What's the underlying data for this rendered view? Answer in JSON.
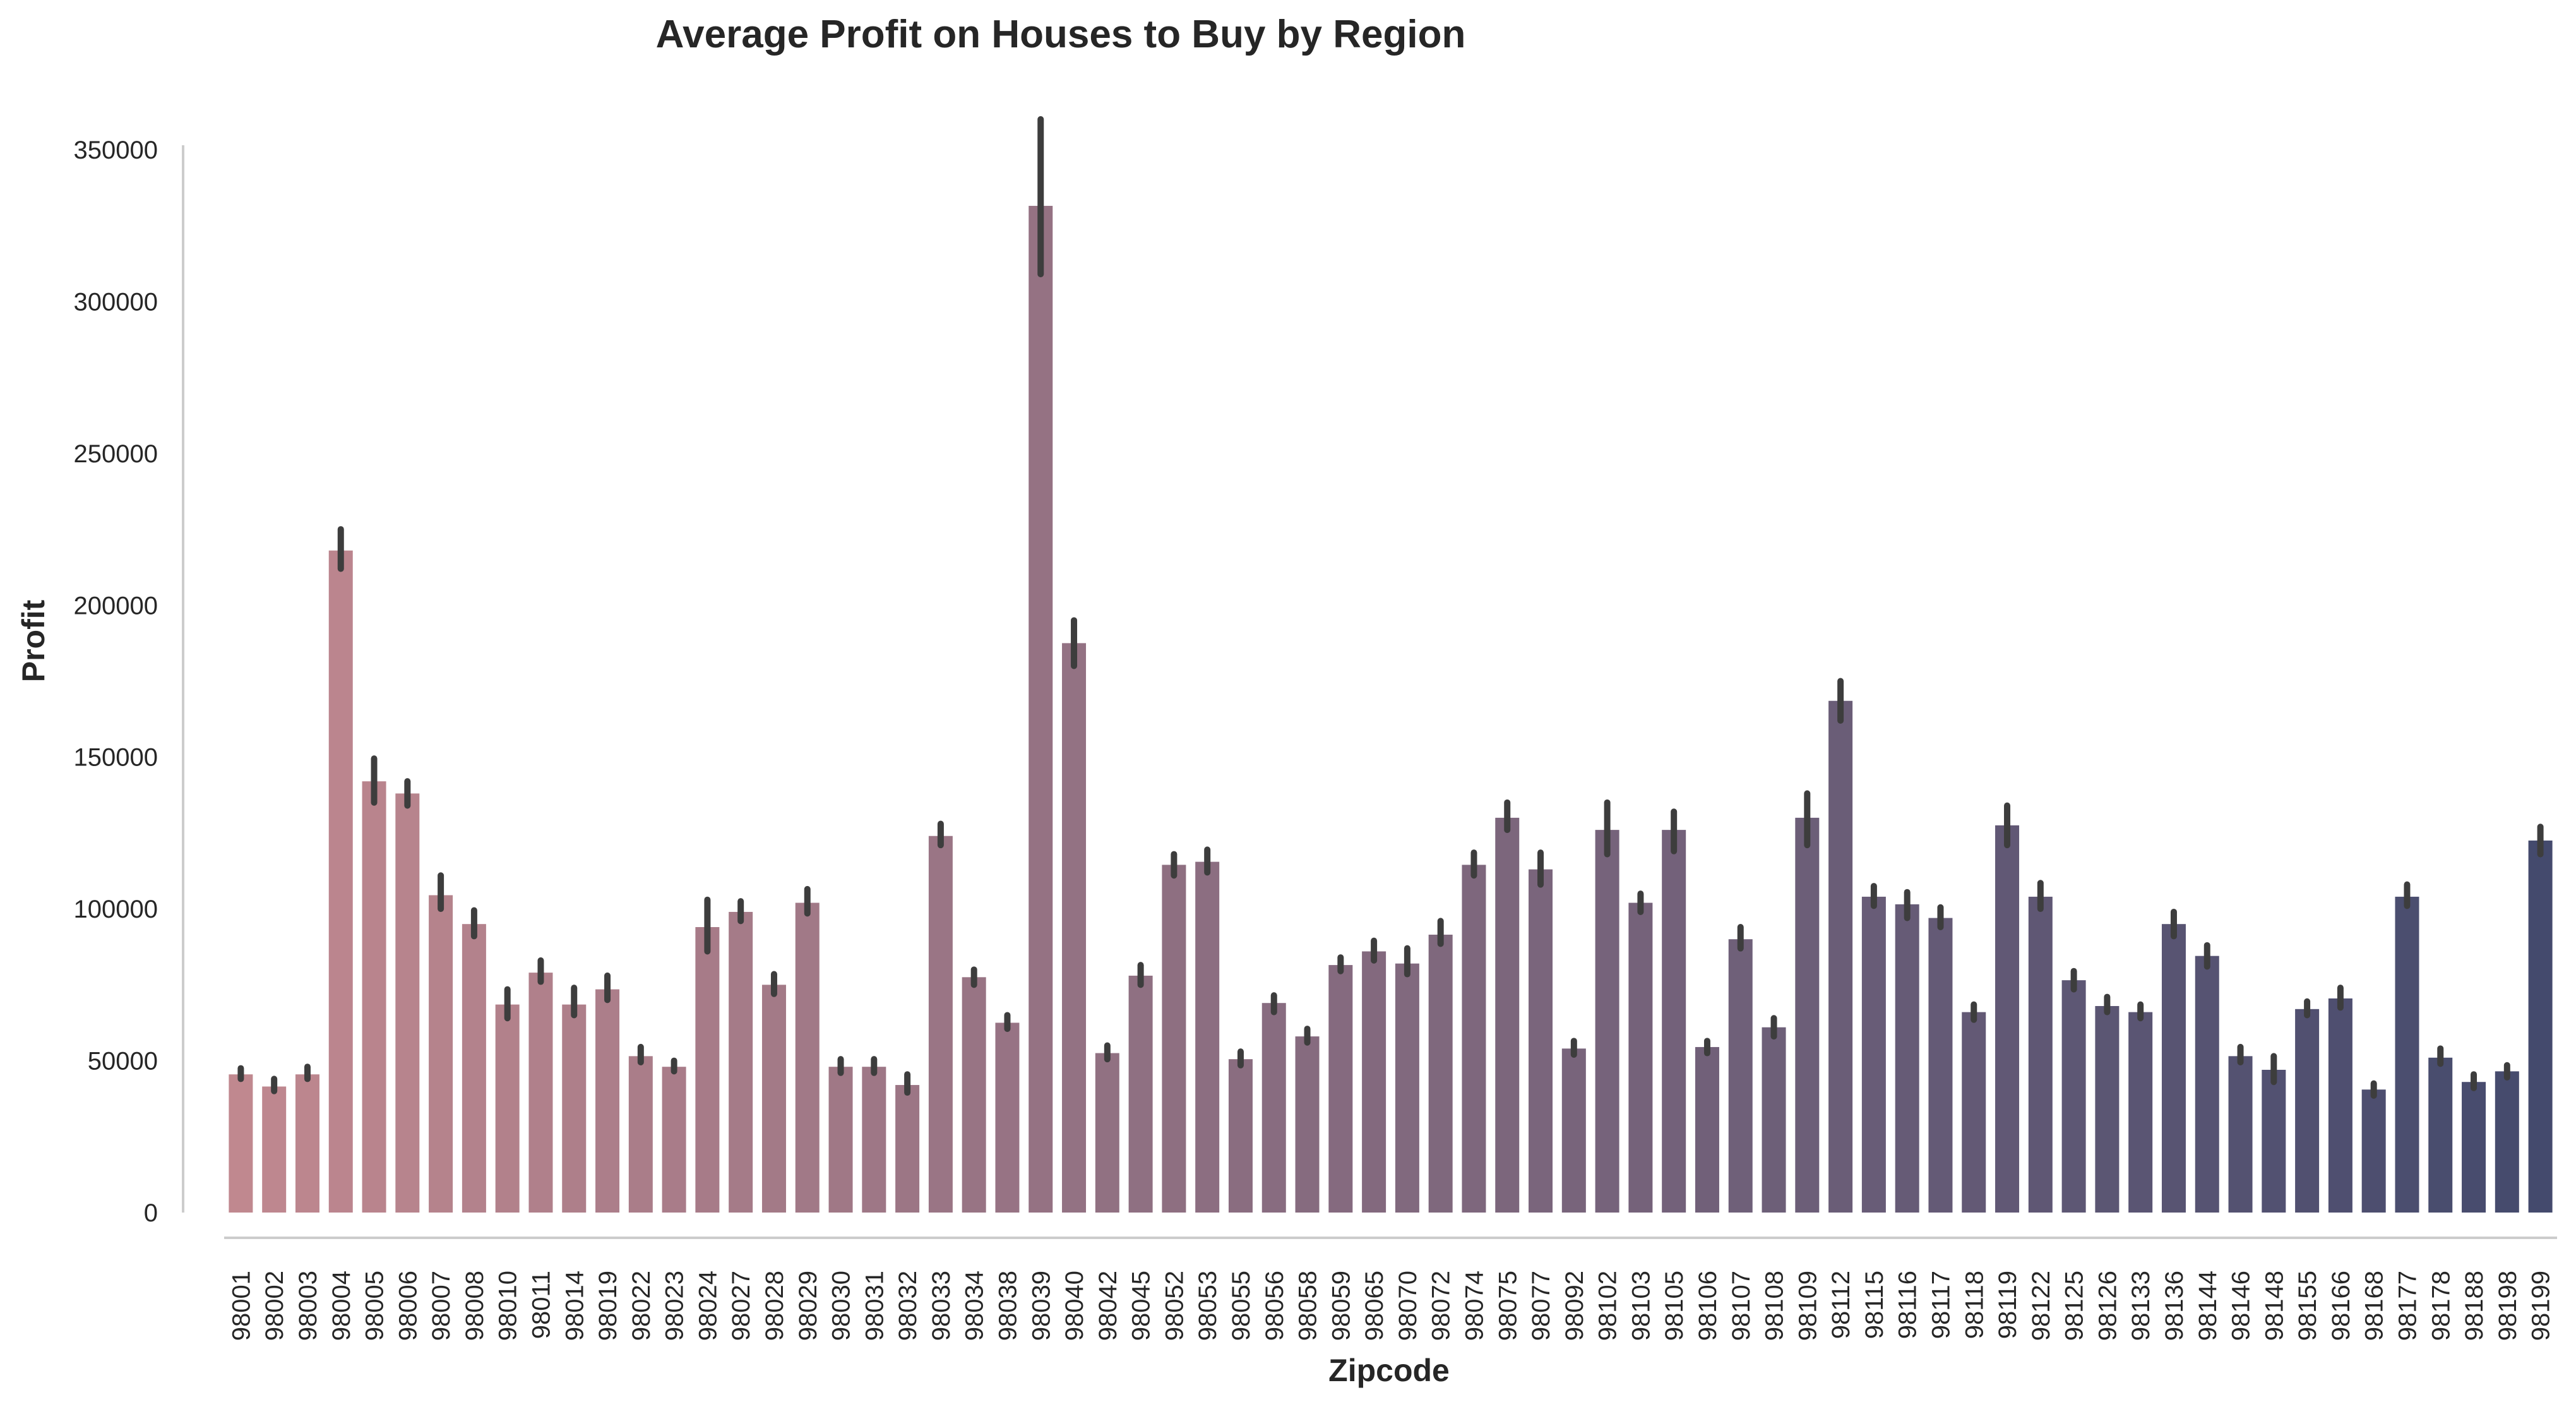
{
  "chart_data": {
    "type": "bar",
    "title": "Average Profit on Houses to Buy by Region",
    "xlabel": "Zipcode",
    "ylabel": "Profit",
    "ylim": [
      0,
      360000
    ],
    "yticks": [
      0,
      50000,
      100000,
      150000,
      200000,
      250000,
      300000,
      350000
    ],
    "grid": false,
    "legend": "none",
    "palette_start": "#c0888f",
    "palette_end": "#444a6d",
    "errorbar_color": "#3d3d3d",
    "categories": [
      "98001",
      "98002",
      "98003",
      "98004",
      "98005",
      "98006",
      "98007",
      "98008",
      "98010",
      "98011",
      "98014",
      "98019",
      "98022",
      "98023",
      "98024",
      "98027",
      "98028",
      "98029",
      "98030",
      "98031",
      "98032",
      "98033",
      "98034",
      "98038",
      "98039",
      "98040",
      "98042",
      "98045",
      "98052",
      "98053",
      "98055",
      "98056",
      "98058",
      "98059",
      "98065",
      "98070",
      "98072",
      "98074",
      "98075",
      "98077",
      "98092",
      "98102",
      "98103",
      "98105",
      "98106",
      "98107",
      "98108",
      "98109",
      "98112",
      "98115",
      "98116",
      "98117",
      "98118",
      "98119",
      "98122",
      "98125",
      "98126",
      "98133",
      "98136",
      "98144",
      "98146",
      "98148",
      "98155",
      "98166",
      "98168",
      "98177",
      "98178",
      "98188",
      "98198",
      "98199"
    ],
    "values": [
      45500,
      41500,
      45500,
      218000,
      142000,
      138000,
      104500,
      95000,
      68500,
      79000,
      68500,
      73500,
      51500,
      48000,
      94000,
      99000,
      75000,
      102000,
      48000,
      48000,
      42000,
      124000,
      77500,
      62500,
      331500,
      187500,
      52500,
      78000,
      114500,
      115500,
      50500,
      69000,
      58000,
      81500,
      86000,
      82000,
      91500,
      114500,
      130000,
      113000,
      54000,
      126000,
      102000,
      126000,
      54500,
      90000,
      61000,
      130000,
      168500,
      104000,
      101500,
      97000,
      66000,
      127500,
      104000,
      76500,
      68000,
      66000,
      95000,
      84500,
      51500,
      47000,
      67000,
      70500,
      40500,
      104000,
      51000,
      43000,
      46500,
      122500
    ],
    "error_low": [
      44000,
      40000,
      44000,
      212000,
      135000,
      134000,
      100000,
      91000,
      64000,
      76000,
      65000,
      70000,
      49500,
      46500,
      86000,
      96000,
      72000,
      98500,
      46000,
      46000,
      39500,
      121000,
      75000,
      60500,
      309000,
      180000,
      50500,
      75000,
      111000,
      112000,
      48500,
      66000,
      56000,
      79500,
      83000,
      78500,
      88500,
      111000,
      126000,
      108000,
      52000,
      118000,
      99000,
      119000,
      52500,
      87000,
      58000,
      121000,
      162000,
      101000,
      97000,
      94000,
      63500,
      121000,
      100000,
      73500,
      66000,
      64000,
      91000,
      81000,
      49500,
      43000,
      65000,
      67500,
      38500,
      101000,
      49000,
      41000,
      44500,
      118000
    ],
    "error_high": [
      47500,
      44000,
      48000,
      225000,
      149500,
      142000,
      111000,
      99500,
      73500,
      83000,
      74000,
      78000,
      54500,
      50000,
      103000,
      102500,
      78500,
      106500,
      50500,
      50500,
      45500,
      128000,
      80000,
      65000,
      360000,
      195000,
      55000,
      81500,
      118000,
      119500,
      53000,
      71500,
      60500,
      84000,
      89500,
      87000,
      96000,
      118500,
      135000,
      118500,
      56500,
      135000,
      105000,
      132000,
      56500,
      94000,
      64000,
      138000,
      175000,
      107500,
      105500,
      100500,
      68500,
      134000,
      108500,
      79500,
      71000,
      68500,
      99000,
      88000,
      54500,
      51500,
      69500,
      74000,
      42500,
      108000,
      54000,
      45500,
      48500,
      127000
    ]
  }
}
